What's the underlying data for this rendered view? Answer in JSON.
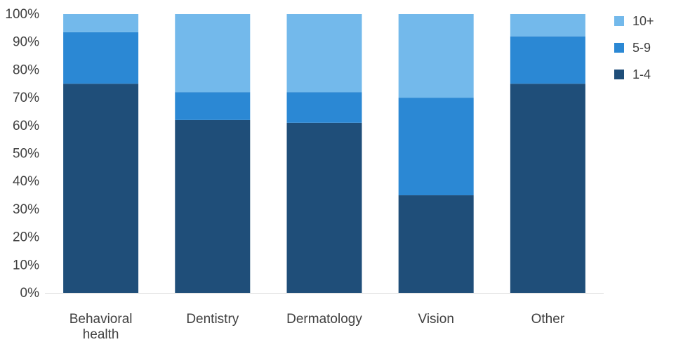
{
  "chart_data": {
    "type": "bar",
    "stacked": true,
    "categories": [
      "Behavioral health",
      "Dentistry",
      "Dermatology",
      "Vision",
      "Other"
    ],
    "category_lines": [
      [
        "Behavioral",
        "health"
      ],
      [
        "Dentistry"
      ],
      [
        "Dermatology"
      ],
      [
        "Vision"
      ],
      [
        "Other"
      ]
    ],
    "series": [
      {
        "name": "1-4",
        "values": [
          75,
          62,
          61,
          35,
          75
        ],
        "color": "#1f4e79"
      },
      {
        "name": "5-9",
        "values": [
          18.5,
          10,
          11,
          35,
          17
        ],
        "color": "#2b88d4"
      },
      {
        "name": "10+",
        "values": [
          6.5,
          28,
          28,
          30,
          8
        ],
        "color": "#73b9eb"
      }
    ],
    "ylim": [
      0,
      100
    ],
    "yticks": [
      0,
      10,
      20,
      30,
      40,
      50,
      60,
      70,
      80,
      90,
      100
    ],
    "ytick_labels": [
      "0%",
      "10%",
      "20%",
      "30%",
      "40%",
      "50%",
      "60%",
      "70%",
      "80%",
      "90%",
      "100%"
    ],
    "legend": {
      "position": "top-right",
      "order": [
        "10+",
        "5-9",
        "1-4"
      ]
    },
    "grid": false,
    "title": "",
    "xlabel": "",
    "ylabel": ""
  }
}
